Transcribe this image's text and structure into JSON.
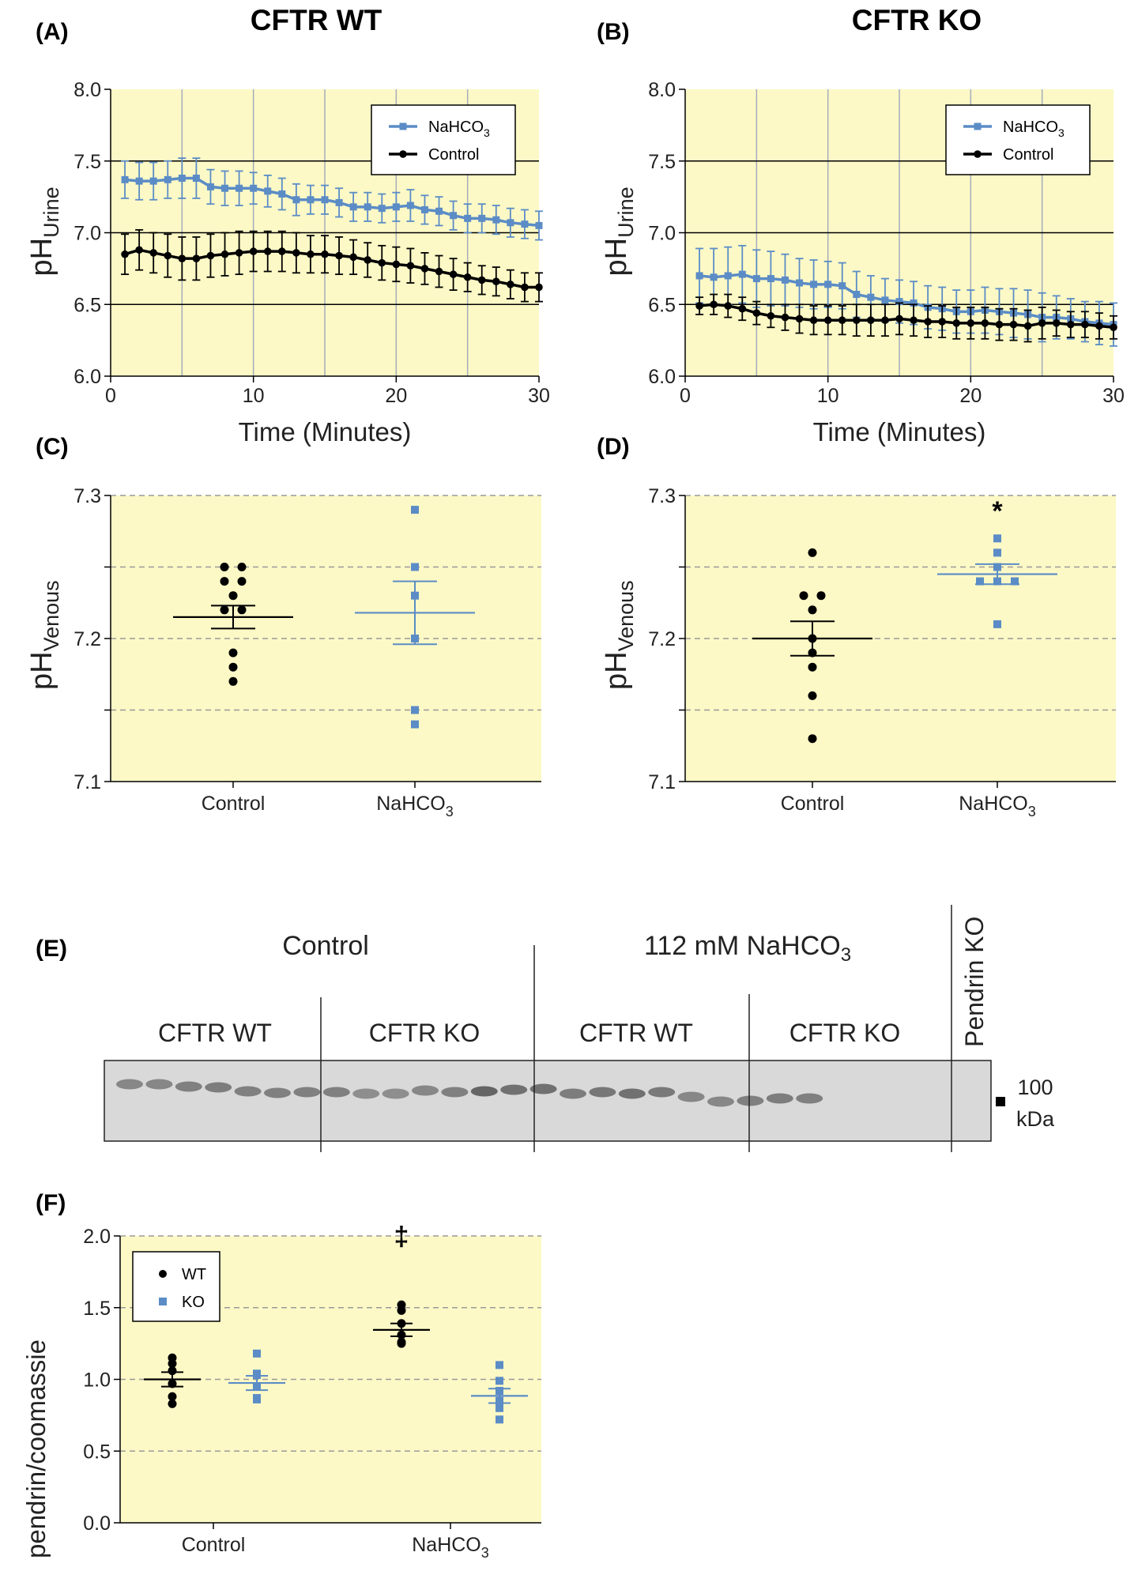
{
  "colors": {
    "plot_bg": "#fcf9c6",
    "ko_series": "#5b8cc6",
    "wt_series": "#000000",
    "grid_solid": "#000000",
    "grid_vertical": "#a6acbd",
    "grid_dashed": "#9a9a9a",
    "blot_bg": "#d9d9d9"
  },
  "panels": {
    "A": {
      "letter": "(A)",
      "title": "CFTR WT"
    },
    "B": {
      "letter": "(B)",
      "title": "CFTR KO"
    },
    "C": {
      "letter": "(C)"
    },
    "D": {
      "letter": "(D)",
      "significance": "*"
    },
    "E": {
      "letter": "(E)",
      "group_control": "Control",
      "group_bicarb_prefix": "112 mM NaHCO",
      "group_bicarb_sub": "3",
      "lane_wt_1": "CFTR WT",
      "lane_ko_1": "CFTR KO",
      "lane_wt_2": "CFTR WT",
      "lane_ko_2": "CFTR KO",
      "pendrin_ko": "Pendrin KO",
      "marker_value": "100",
      "marker_unit": "kDa"
    },
    "F": {
      "letter": "(F)",
      "significance": "‡"
    }
  },
  "chart_data": [
    {
      "id": "A",
      "type": "line",
      "title": "CFTR WT",
      "xlabel": "Time (Minutes)",
      "ylabel_main": "pH",
      "ylabel_sub": "Urine",
      "xlim": [
        0,
        30
      ],
      "ylim": [
        6.0,
        8.0
      ],
      "xticks": [
        0,
        10,
        20,
        30
      ],
      "yticks": [
        6.0,
        6.5,
        7.0,
        7.5,
        8.0
      ],
      "ytick_labels": [
        "6.0",
        "6.5",
        "7.0",
        "7.5",
        "8.0"
      ],
      "legend_placement": "top-right",
      "series": [
        {
          "name": "NaHCO",
          "name_sub": "3",
          "color": "#5b8cc6",
          "marker": "square",
          "x": [
            1,
            2,
            3,
            4,
            5,
            6,
            7,
            8,
            9,
            10,
            11,
            12,
            13,
            14,
            15,
            16,
            17,
            18,
            19,
            20,
            21,
            22,
            23,
            24,
            25,
            26,
            27,
            28,
            29,
            30
          ],
          "y": [
            7.37,
            7.36,
            7.36,
            7.37,
            7.38,
            7.38,
            7.32,
            7.31,
            7.31,
            7.31,
            7.29,
            7.27,
            7.23,
            7.23,
            7.23,
            7.21,
            7.18,
            7.18,
            7.17,
            7.18,
            7.19,
            7.16,
            7.15,
            7.12,
            7.1,
            7.1,
            7.09,
            7.07,
            7.06,
            7.05
          ],
          "err": [
            0.13,
            0.13,
            0.13,
            0.13,
            0.14,
            0.14,
            0.12,
            0.12,
            0.12,
            0.11,
            0.11,
            0.11,
            0.11,
            0.1,
            0.1,
            0.1,
            0.1,
            0.1,
            0.1,
            0.1,
            0.11,
            0.1,
            0.1,
            0.1,
            0.1,
            0.1,
            0.1,
            0.1,
            0.1,
            0.1
          ]
        },
        {
          "name": "Control",
          "color": "#000000",
          "marker": "circle",
          "x": [
            1,
            2,
            3,
            4,
            5,
            6,
            7,
            8,
            9,
            10,
            11,
            12,
            13,
            14,
            15,
            16,
            17,
            18,
            19,
            20,
            21,
            22,
            23,
            24,
            25,
            26,
            27,
            28,
            29,
            30
          ],
          "y": [
            6.85,
            6.88,
            6.86,
            6.84,
            6.82,
            6.82,
            6.84,
            6.85,
            6.86,
            6.87,
            6.87,
            6.87,
            6.86,
            6.85,
            6.85,
            6.84,
            6.83,
            6.81,
            6.79,
            6.78,
            6.77,
            6.75,
            6.73,
            6.71,
            6.69,
            6.67,
            6.66,
            6.64,
            6.62,
            6.62
          ],
          "err": [
            0.14,
            0.14,
            0.14,
            0.15,
            0.15,
            0.15,
            0.15,
            0.15,
            0.15,
            0.14,
            0.14,
            0.14,
            0.14,
            0.13,
            0.13,
            0.13,
            0.12,
            0.12,
            0.12,
            0.12,
            0.12,
            0.11,
            0.11,
            0.11,
            0.1,
            0.1,
            0.1,
            0.1,
            0.1,
            0.1
          ]
        }
      ]
    },
    {
      "id": "B",
      "type": "line",
      "title": "CFTR KO",
      "xlabel": "Time (Minutes)",
      "ylabel_main": "pH",
      "ylabel_sub": "Urine",
      "xlim": [
        0,
        30
      ],
      "ylim": [
        6.0,
        8.0
      ],
      "xticks": [
        0,
        10,
        20,
        30
      ],
      "yticks": [
        6.0,
        6.5,
        7.0,
        7.5,
        8.0
      ],
      "ytick_labels": [
        "6.0",
        "6.5",
        "7.0",
        "7.5",
        "8.0"
      ],
      "legend_placement": "top-right",
      "series": [
        {
          "name": "NaHCO",
          "name_sub": "3",
          "color": "#5b8cc6",
          "marker": "square",
          "x": [
            1,
            2,
            3,
            4,
            5,
            6,
            7,
            8,
            9,
            10,
            11,
            12,
            13,
            14,
            15,
            16,
            17,
            18,
            19,
            20,
            21,
            22,
            23,
            24,
            25,
            26,
            27,
            28,
            29,
            30
          ],
          "y": [
            6.7,
            6.69,
            6.7,
            6.71,
            6.68,
            6.68,
            6.67,
            6.65,
            6.64,
            6.64,
            6.63,
            6.57,
            6.55,
            6.53,
            6.52,
            6.51,
            6.48,
            6.47,
            6.45,
            6.45,
            6.46,
            6.45,
            6.44,
            6.43,
            6.41,
            6.41,
            6.4,
            6.38,
            6.37,
            6.36
          ],
          "err": [
            0.19,
            0.2,
            0.2,
            0.2,
            0.2,
            0.19,
            0.18,
            0.17,
            0.17,
            0.16,
            0.16,
            0.16,
            0.15,
            0.15,
            0.15,
            0.15,
            0.15,
            0.15,
            0.15,
            0.15,
            0.16,
            0.16,
            0.17,
            0.17,
            0.17,
            0.15,
            0.14,
            0.14,
            0.15,
            0.15
          ]
        },
        {
          "name": "Control",
          "color": "#000000",
          "marker": "circle",
          "x": [
            1,
            2,
            3,
            4,
            5,
            6,
            7,
            8,
            9,
            10,
            11,
            12,
            13,
            14,
            15,
            16,
            17,
            18,
            19,
            20,
            21,
            22,
            23,
            24,
            25,
            26,
            27,
            28,
            29,
            30
          ],
          "y": [
            6.49,
            6.5,
            6.49,
            6.47,
            6.44,
            6.42,
            6.41,
            6.4,
            6.39,
            6.39,
            6.39,
            6.39,
            6.39,
            6.39,
            6.4,
            6.39,
            6.38,
            6.38,
            6.37,
            6.37,
            6.37,
            6.36,
            6.36,
            6.35,
            6.37,
            6.37,
            6.36,
            6.36,
            6.35,
            6.34
          ],
          "err": [
            0.06,
            0.07,
            0.08,
            0.08,
            0.08,
            0.08,
            0.09,
            0.1,
            0.1,
            0.1,
            0.1,
            0.11,
            0.11,
            0.11,
            0.11,
            0.11,
            0.11,
            0.11,
            0.11,
            0.11,
            0.11,
            0.11,
            0.11,
            0.11,
            0.11,
            0.09,
            0.09,
            0.09,
            0.09,
            0.08
          ]
        }
      ]
    },
    {
      "id": "C",
      "type": "scatter",
      "ylabel_main": "pH",
      "ylabel_sub": "Venous",
      "ylim": [
        7.1,
        7.3
      ],
      "yticks": [
        7.1,
        7.15,
        7.2,
        7.25,
        7.3
      ],
      "ytick_labels": [
        "7.1",
        "",
        "7.2",
        "",
        "7.3"
      ],
      "categories": [
        "Control",
        "NaHCO"
      ],
      "category_subs": [
        "",
        "3"
      ],
      "groups": [
        {
          "category": "Control",
          "color": "#000000",
          "marker": "circle",
          "values": [
            7.25,
            7.25,
            7.24,
            7.24,
            7.23,
            7.22,
            7.22,
            7.19,
            7.18,
            7.17
          ],
          "mean": 7.215,
          "sem": 0.008
        },
        {
          "category": "NaHCO",
          "color": "#5b8cc6",
          "marker": "square",
          "values": [
            7.29,
            7.25,
            7.23,
            7.2,
            7.15,
            7.14
          ],
          "mean": 7.218,
          "sem": 0.022
        }
      ]
    },
    {
      "id": "D",
      "type": "scatter",
      "ylabel_main": "pH",
      "ylabel_sub": "Venous",
      "ylim": [
        7.1,
        7.3
      ],
      "yticks": [
        7.1,
        7.15,
        7.2,
        7.25,
        7.3
      ],
      "ytick_labels": [
        "7.1",
        "",
        "7.2",
        "",
        "7.3"
      ],
      "categories": [
        "Control",
        "NaHCO"
      ],
      "category_subs": [
        "",
        "3"
      ],
      "groups": [
        {
          "category": "Control",
          "color": "#000000",
          "marker": "circle",
          "values": [
            7.26,
            7.23,
            7.23,
            7.22,
            7.2,
            7.19,
            7.18,
            7.16,
            7.13
          ],
          "mean": 7.2,
          "sem": 0.012
        },
        {
          "category": "NaHCO",
          "color": "#5b8cc6",
          "marker": "square",
          "values": [
            7.27,
            7.26,
            7.25,
            7.24,
            7.24,
            7.24,
            7.21
          ],
          "mean": 7.245,
          "sem": 0.007
        }
      ]
    },
    {
      "id": "F",
      "type": "scatter",
      "ylabel": "pendrin/coomassie",
      "ylim": [
        0.0,
        2.0
      ],
      "yticks": [
        0.0,
        0.5,
        1.0,
        1.5,
        2.0
      ],
      "ytick_labels": [
        "0.0",
        "0.5",
        "1.0",
        "1.5",
        "2.0"
      ],
      "categories": [
        "Control",
        "NaHCO"
      ],
      "category_subs": [
        "",
        "3"
      ],
      "legend_placement": "top-left",
      "legend": [
        {
          "name": "WT",
          "color": "#000000",
          "marker": "circle"
        },
        {
          "name": "KO",
          "color": "#5b8cc6",
          "marker": "square"
        }
      ],
      "groups": [
        {
          "category": "Control",
          "genotype": "WT",
          "color": "#000000",
          "marker": "circle",
          "values": [
            1.15,
            1.11,
            1.06,
            0.97,
            0.88,
            0.83
          ],
          "mean": 1.0,
          "sem": 0.05
        },
        {
          "category": "Control",
          "genotype": "KO",
          "color": "#5b8cc6",
          "marker": "square",
          "values": [
            1.18,
            1.04,
            1.03,
            0.95,
            0.87,
            0.86
          ],
          "mean": 0.975,
          "sem": 0.05
        },
        {
          "category": "NaHCO",
          "genotype": "WT",
          "color": "#000000",
          "marker": "circle",
          "values": [
            1.52,
            1.48,
            1.39,
            1.31,
            1.26,
            1.25
          ],
          "mean": 1.345,
          "sem": 0.045
        },
        {
          "category": "NaHCO",
          "genotype": "KO",
          "color": "#5b8cc6",
          "marker": "square",
          "values": [
            1.1,
            0.99,
            0.92,
            0.85,
            0.8,
            0.72
          ],
          "mean": 0.885,
          "sem": 0.05
        }
      ]
    }
  ]
}
